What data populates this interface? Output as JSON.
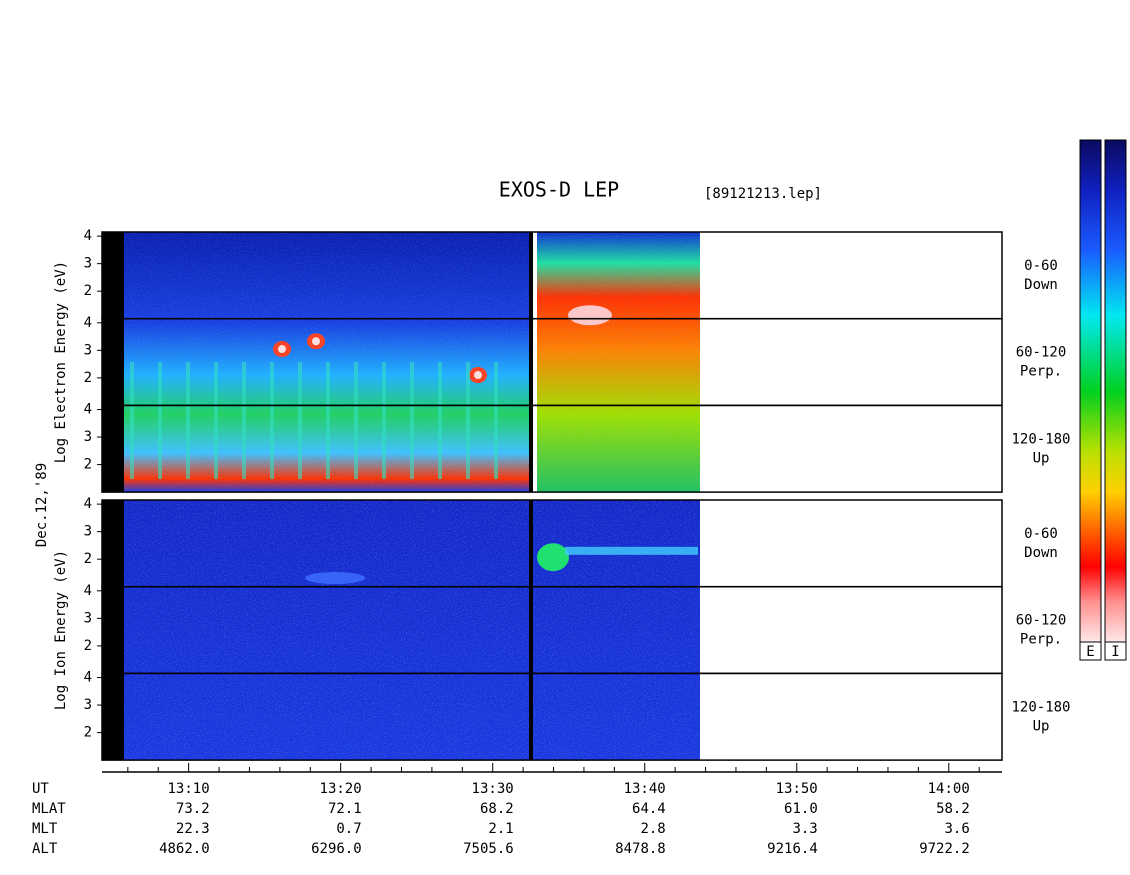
{
  "chart_data": {
    "type": "spectrogram",
    "title": "EXOS-D LEP",
    "file_label": "[89121213.lep]",
    "date_label": "Dec.12,'89",
    "groups": [
      {
        "name": "Log Electron Energy (eV)",
        "species": "electron",
        "panels": [
          {
            "label": "0-60",
            "sublabel": "Down"
          },
          {
            "label": "60-120",
            "sublabel": "Perp."
          },
          {
            "label": "120-180",
            "sublabel": "Up"
          }
        ]
      },
      {
        "name": "Log Ion Energy (eV)",
        "species": "ion",
        "panels": [
          {
            "label": "0-60",
            "sublabel": "Down"
          },
          {
            "label": "60-120",
            "sublabel": "Perp."
          },
          {
            "label": "120-180",
            "sublabel": "Up"
          }
        ]
      }
    ],
    "ylim": [
      1,
      4.15
    ],
    "yticks": [
      2,
      3,
      4
    ],
    "xlim": [
      4.3,
      63.5
    ],
    "xticks": [
      {
        "value": 10,
        "label": "13:10"
      },
      {
        "value": 20,
        "label": "13:20"
      },
      {
        "value": 30,
        "label": "13:30"
      },
      {
        "value": 40,
        "label": "13:40"
      },
      {
        "value": 50,
        "label": "13:50"
      },
      {
        "value": 60,
        "label": "14:00"
      }
    ],
    "minor_xticks": [
      6,
      8,
      12,
      14,
      16,
      18,
      22,
      24,
      26,
      28,
      32,
      34,
      36,
      38,
      42,
      44,
      46,
      48,
      52,
      54,
      56,
      58,
      62
    ],
    "x_row_label": "UT",
    "orbit_rows": [
      {
        "name": "MLAT",
        "values": [
          "73.2",
          "72.1",
          "68.2",
          "64.4",
          "61.0",
          "58.2"
        ]
      },
      {
        "name": "MLT",
        "values": [
          "22.3",
          "0.7",
          "2.1",
          "2.8",
          "3.3",
          "3.6"
        ]
      },
      {
        "name": "ALT",
        "values": [
          "4862.0",
          "6296.0",
          "7505.6",
          "8478.8",
          "9216.4",
          "9722.2"
        ]
      }
    ],
    "colorbars": [
      "E",
      "I"
    ]
  }
}
